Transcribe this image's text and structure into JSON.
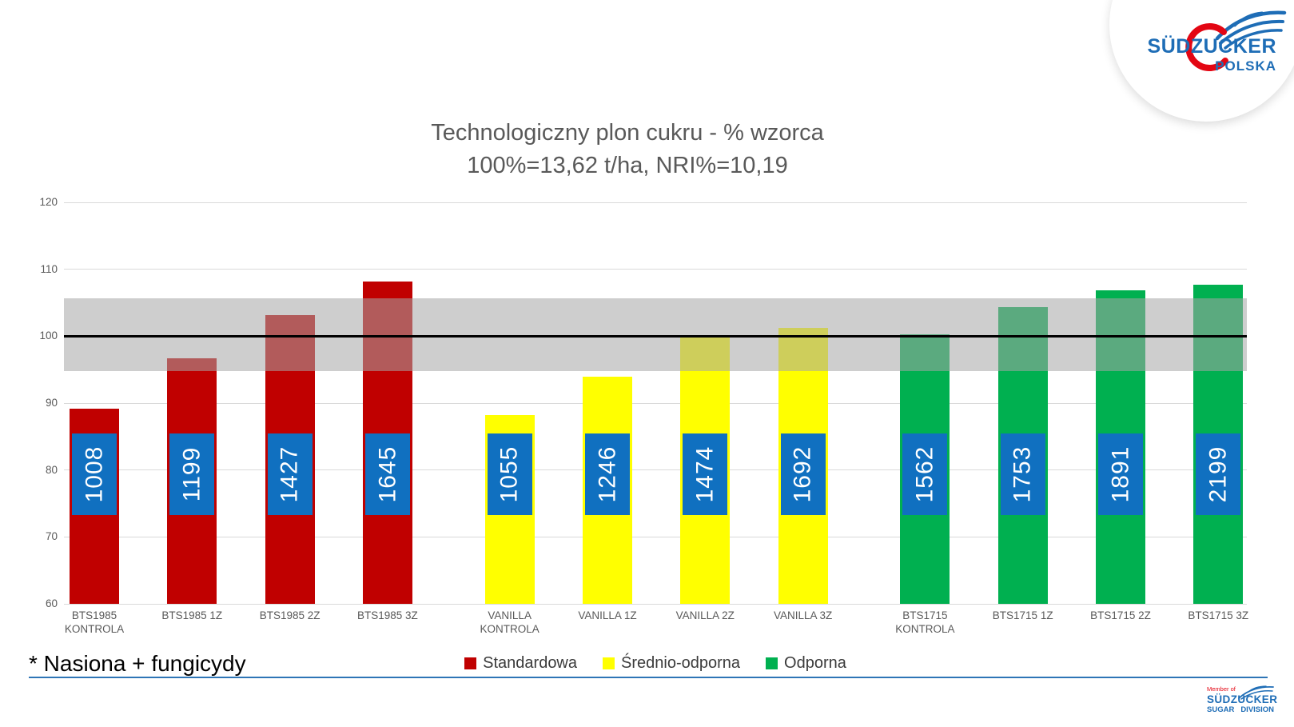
{
  "footnote": "* Nasiona + fungicydy",
  "logos": {
    "top": {
      "brand": "SÜDZUCKER",
      "region": "POLSKA"
    },
    "bottom": {
      "member": "Member of",
      "brand": "SÜDZUCKER",
      "division_left": "SUGAR",
      "division_right": "DIVISION"
    }
  },
  "colors": {
    "divider_blue": "#2E75B6",
    "logo_blue": "#1E6DB6",
    "logo_red": "#E30613",
    "axis_text": "#595959",
    "title_gray": "#595959"
  },
  "chart_data": {
    "type": "bar",
    "title": "Technologiczny plon cukru - % wzorca",
    "subtitle": "100%=13,62 t/ha, NRI%=10,19",
    "xlabel": "",
    "ylabel": "",
    "ylim": [
      60,
      120
    ],
    "yticks": [
      60,
      70,
      80,
      90,
      100,
      110,
      120
    ],
    "grid": true,
    "reference_line": 100,
    "reference_band": [
      94.8,
      105.7
    ],
    "legend_position": "bottom",
    "value_label_span": [
      73.3,
      85.5
    ],
    "value_label_style": {
      "fill": "#1070C0",
      "text_color": "#FFFFFF"
    },
    "legend": [
      {
        "label": "Standardowa",
        "color": "#C00000"
      },
      {
        "label": "Średnio-odporna",
        "color": "#FFFF00"
      },
      {
        "label": "Odporna",
        "color": "#00B050"
      }
    ],
    "bars": [
      {
        "category": [
          "BTS1985",
          "KONTROLA"
        ],
        "value": 89.2,
        "bar_label": "1008",
        "series": "Standardowa",
        "color": "#C00000"
      },
      {
        "category": [
          "BTS1985 1Z"
        ],
        "value": 96.7,
        "bar_label": "1199",
        "series": "Standardowa",
        "color": "#C00000"
      },
      {
        "category": [
          "BTS1985 2Z"
        ],
        "value": 103.2,
        "bar_label": "1427",
        "series": "Standardowa",
        "color": "#C00000"
      },
      {
        "category": [
          "BTS1985 3Z"
        ],
        "value": 108.2,
        "bar_label": "1645",
        "series": "Standardowa",
        "color": "#C00000"
      },
      {
        "category": [
          "VANILLA",
          "KONTROLA"
        ],
        "value": 88.2,
        "bar_label": "1055",
        "series": "Średnio-odporna",
        "color": "#FFFF00"
      },
      {
        "category": [
          "VANILLA 1Z"
        ],
        "value": 93.9,
        "bar_label": "1246",
        "series": "Średnio-odporna",
        "color": "#FFFF00"
      },
      {
        "category": [
          "VANILLA 2Z"
        ],
        "value": 100.2,
        "bar_label": "1474",
        "series": "Średnio-odporna",
        "color": "#FFFF00"
      },
      {
        "category": [
          "VANILLA 3Z"
        ],
        "value": 101.2,
        "bar_label": "1692",
        "series": "Średnio-odporna",
        "color": "#FFFF00"
      },
      {
        "category": [
          "BTS1715",
          "KONTROLA"
        ],
        "value": 100.3,
        "bar_label": "1562",
        "series": "Odporna",
        "color": "#00B050"
      },
      {
        "category": [
          "BTS1715 1Z"
        ],
        "value": 104.3,
        "bar_label": "1753",
        "series": "Odporna",
        "color": "#00B050"
      },
      {
        "category": [
          "BTS1715 2Z"
        ],
        "value": 106.8,
        "bar_label": "1891",
        "series": "Odporna",
        "color": "#00B050"
      },
      {
        "category": [
          "BTS1715 3Z"
        ],
        "value": 107.7,
        "bar_label": "2199",
        "series": "Odporna",
        "color": "#00B050"
      }
    ]
  }
}
